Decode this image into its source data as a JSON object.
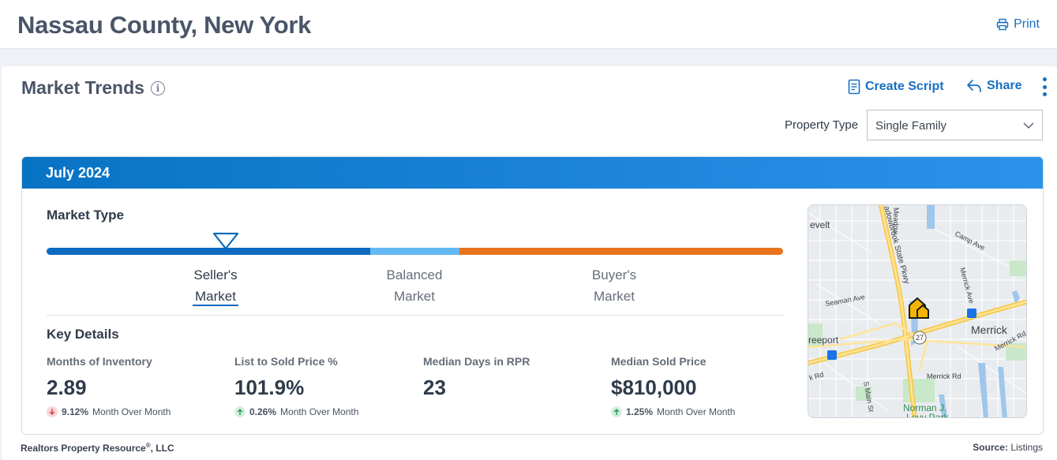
{
  "header": {
    "title": "Nassau County, New York",
    "print_label": "Print"
  },
  "market_trends": {
    "title": "Market Trends",
    "create_script_label": "Create Script",
    "share_label": "Share",
    "property_type": {
      "label": "Property Type",
      "selected": "Single Family"
    },
    "period": "July 2024",
    "market_type": {
      "title": "Market Type",
      "current": "Seller's Market",
      "segments": [
        {
          "line1": "Seller's",
          "line2": "Market",
          "color": "#0a6bbf"
        },
        {
          "line1": "Balanced",
          "line2": "Market",
          "color": "#63b8f3"
        },
        {
          "line1": "Buyer's",
          "line2": "Market",
          "color": "#e8731c"
        }
      ]
    },
    "key_details": {
      "title": "Key Details",
      "stats": [
        {
          "label": "Months of Inventory",
          "value": "2.89",
          "change": "9.12%",
          "direction": "down",
          "change_label": "Month Over Month"
        },
        {
          "label": "List to Sold Price %",
          "value": "101.9%",
          "change": "0.26%",
          "direction": "up",
          "change_label": "Month Over Month"
        },
        {
          "label": "Median Days in RPR",
          "value": "23"
        },
        {
          "label": "Median Sold Price",
          "value": "$810,000",
          "change": "1.25%",
          "direction": "up",
          "change_label": "Month Over Month"
        }
      ]
    },
    "map": {
      "labels": {
        "roosevelt": "evelt",
        "parkway": "adowbrook State Pkwy",
        "meadow": "Meadow",
        "camp": "Camp Ave",
        "merrick_ave": "Merrick Ave",
        "seaman": "Seaman Ave",
        "merrick": "Merrick",
        "freeport": "reeport",
        "route": "27",
        "merrick_rd": "Merrick Rd",
        "merrick_rd2": "Merrick Rd",
        "k_rd": "k Rd",
        "main_st": "S Main St",
        "park": "Norman J.",
        "park2": "Levy Park"
      }
    }
  },
  "footer": {
    "company": "Realtors Property Resource",
    "reg": "®",
    "suffix": ", LLC",
    "source_label": "Source:",
    "source_value": "Listings"
  },
  "colors": {
    "accent": "#1670c3",
    "header_gradient_start": "#0873c4",
    "header_gradient_end": "#2b92ea"
  }
}
